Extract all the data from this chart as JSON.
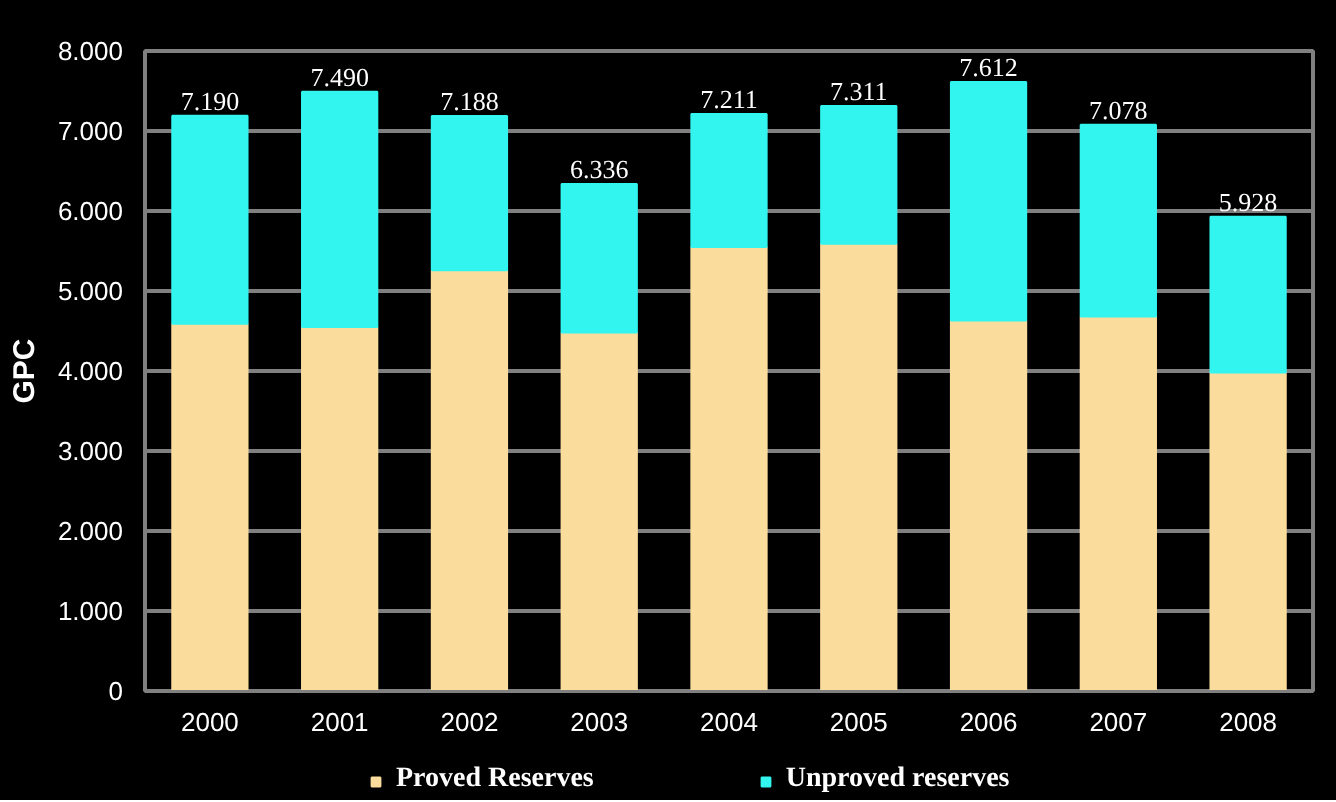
{
  "chart_data": {
    "type": "bar",
    "stacked": true,
    "ylabel": "GPC",
    "categories": [
      "2000",
      "2001",
      "2002",
      "2003",
      "2004",
      "2005",
      "2006",
      "2007",
      "2008"
    ],
    "series": [
      {
        "name": "Proved Reserves",
        "color": "#fadc9c",
        "values": [
          4590,
          4550,
          5260,
          4480,
          5550,
          5590,
          4630,
          4680,
          3980
        ]
      },
      {
        "name": "Unproved reserves",
        "color": "#33f5f0",
        "values": [
          2600,
          2940,
          1928,
          1856,
          1661,
          1721,
          2982,
          2398,
          1948
        ]
      }
    ],
    "totals": [
      "7.190",
      "7.490",
      "7.188",
      "6.336",
      "7.211",
      "7.311",
      "7.612",
      "7.078",
      "5.928"
    ],
    "ylim": [
      0,
      8000
    ],
    "yticks": [
      0,
      {
        "value": 1000,
        "label": "1.000"
      },
      {
        "value": 2000,
        "label": "2.000"
      },
      {
        "value": 3000,
        "label": "3.000"
      },
      {
        "value": 4000,
        "label": "4.000"
      },
      {
        "value": 5000,
        "label": "5.000"
      },
      {
        "value": 6000,
        "label": "6.000"
      },
      {
        "value": 7000,
        "label": "7.000"
      },
      {
        "value": 8000,
        "label": "8.000"
      }
    ],
    "grid": "y",
    "legend": "bottom"
  }
}
